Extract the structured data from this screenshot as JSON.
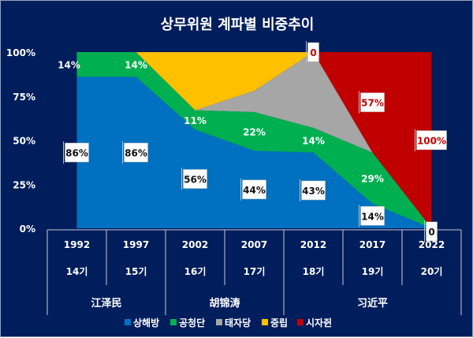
{
  "chart_data": {
    "type": "area",
    "stacked": true,
    "title": "상무위원 계파별 비중추이",
    "categories": [
      "1992",
      "1997",
      "2002",
      "2007",
      "2012",
      "2017",
      "2022"
    ],
    "terms": [
      "14기",
      "15기",
      "16기",
      "17기",
      "18기",
      "19기",
      "20기"
    ],
    "leaders": [
      {
        "name": "江泽民",
        "span": [
          0,
          1
        ]
      },
      {
        "name": "胡锦涛",
        "span": [
          2,
          3
        ]
      },
      {
        "name": "习近平",
        "span": [
          4,
          6
        ]
      }
    ],
    "ylim": [
      0,
      100
    ],
    "yticks": [
      "0%",
      "25%",
      "50%",
      "75%",
      "100%"
    ],
    "legend_position": "bottom",
    "series": [
      {
        "name": "상해방",
        "color": "#0070c0",
        "values": [
          86,
          86,
          56,
          44,
          43,
          14,
          0
        ],
        "labels": [
          "86%",
          "86%",
          "56%",
          "44%",
          "43%",
          "14%",
          "0"
        ],
        "label_style": "box-dark"
      },
      {
        "name": "공청단",
        "color": "#00b050",
        "values": [
          14,
          14,
          11,
          22,
          14,
          29,
          0
        ],
        "labels": [
          "14%",
          "14%",
          "11%",
          "22%",
          "14%",
          "29%",
          null
        ],
        "label_style": "plain-white"
      },
      {
        "name": "태자당",
        "color": "#a6a6a6",
        "values": [
          0,
          0,
          0,
          12,
          43,
          0,
          0
        ],
        "labels": [
          null,
          null,
          null,
          null,
          null,
          null,
          null
        ],
        "label_style": "none"
      },
      {
        "name": "중립",
        "color": "#ffc000",
        "values": [
          0,
          0,
          33,
          22,
          0,
          0,
          0
        ],
        "labels": [
          null,
          null,
          null,
          null,
          null,
          null,
          null
        ],
        "label_style": "none"
      },
      {
        "name": "시자쥔",
        "color": "#c00000",
        "values": [
          0,
          0,
          0,
          0,
          0,
          57,
          100
        ],
        "labels": [
          null,
          null,
          null,
          null,
          "0",
          "57%",
          "100%"
        ],
        "label_style": "box-red"
      }
    ]
  }
}
